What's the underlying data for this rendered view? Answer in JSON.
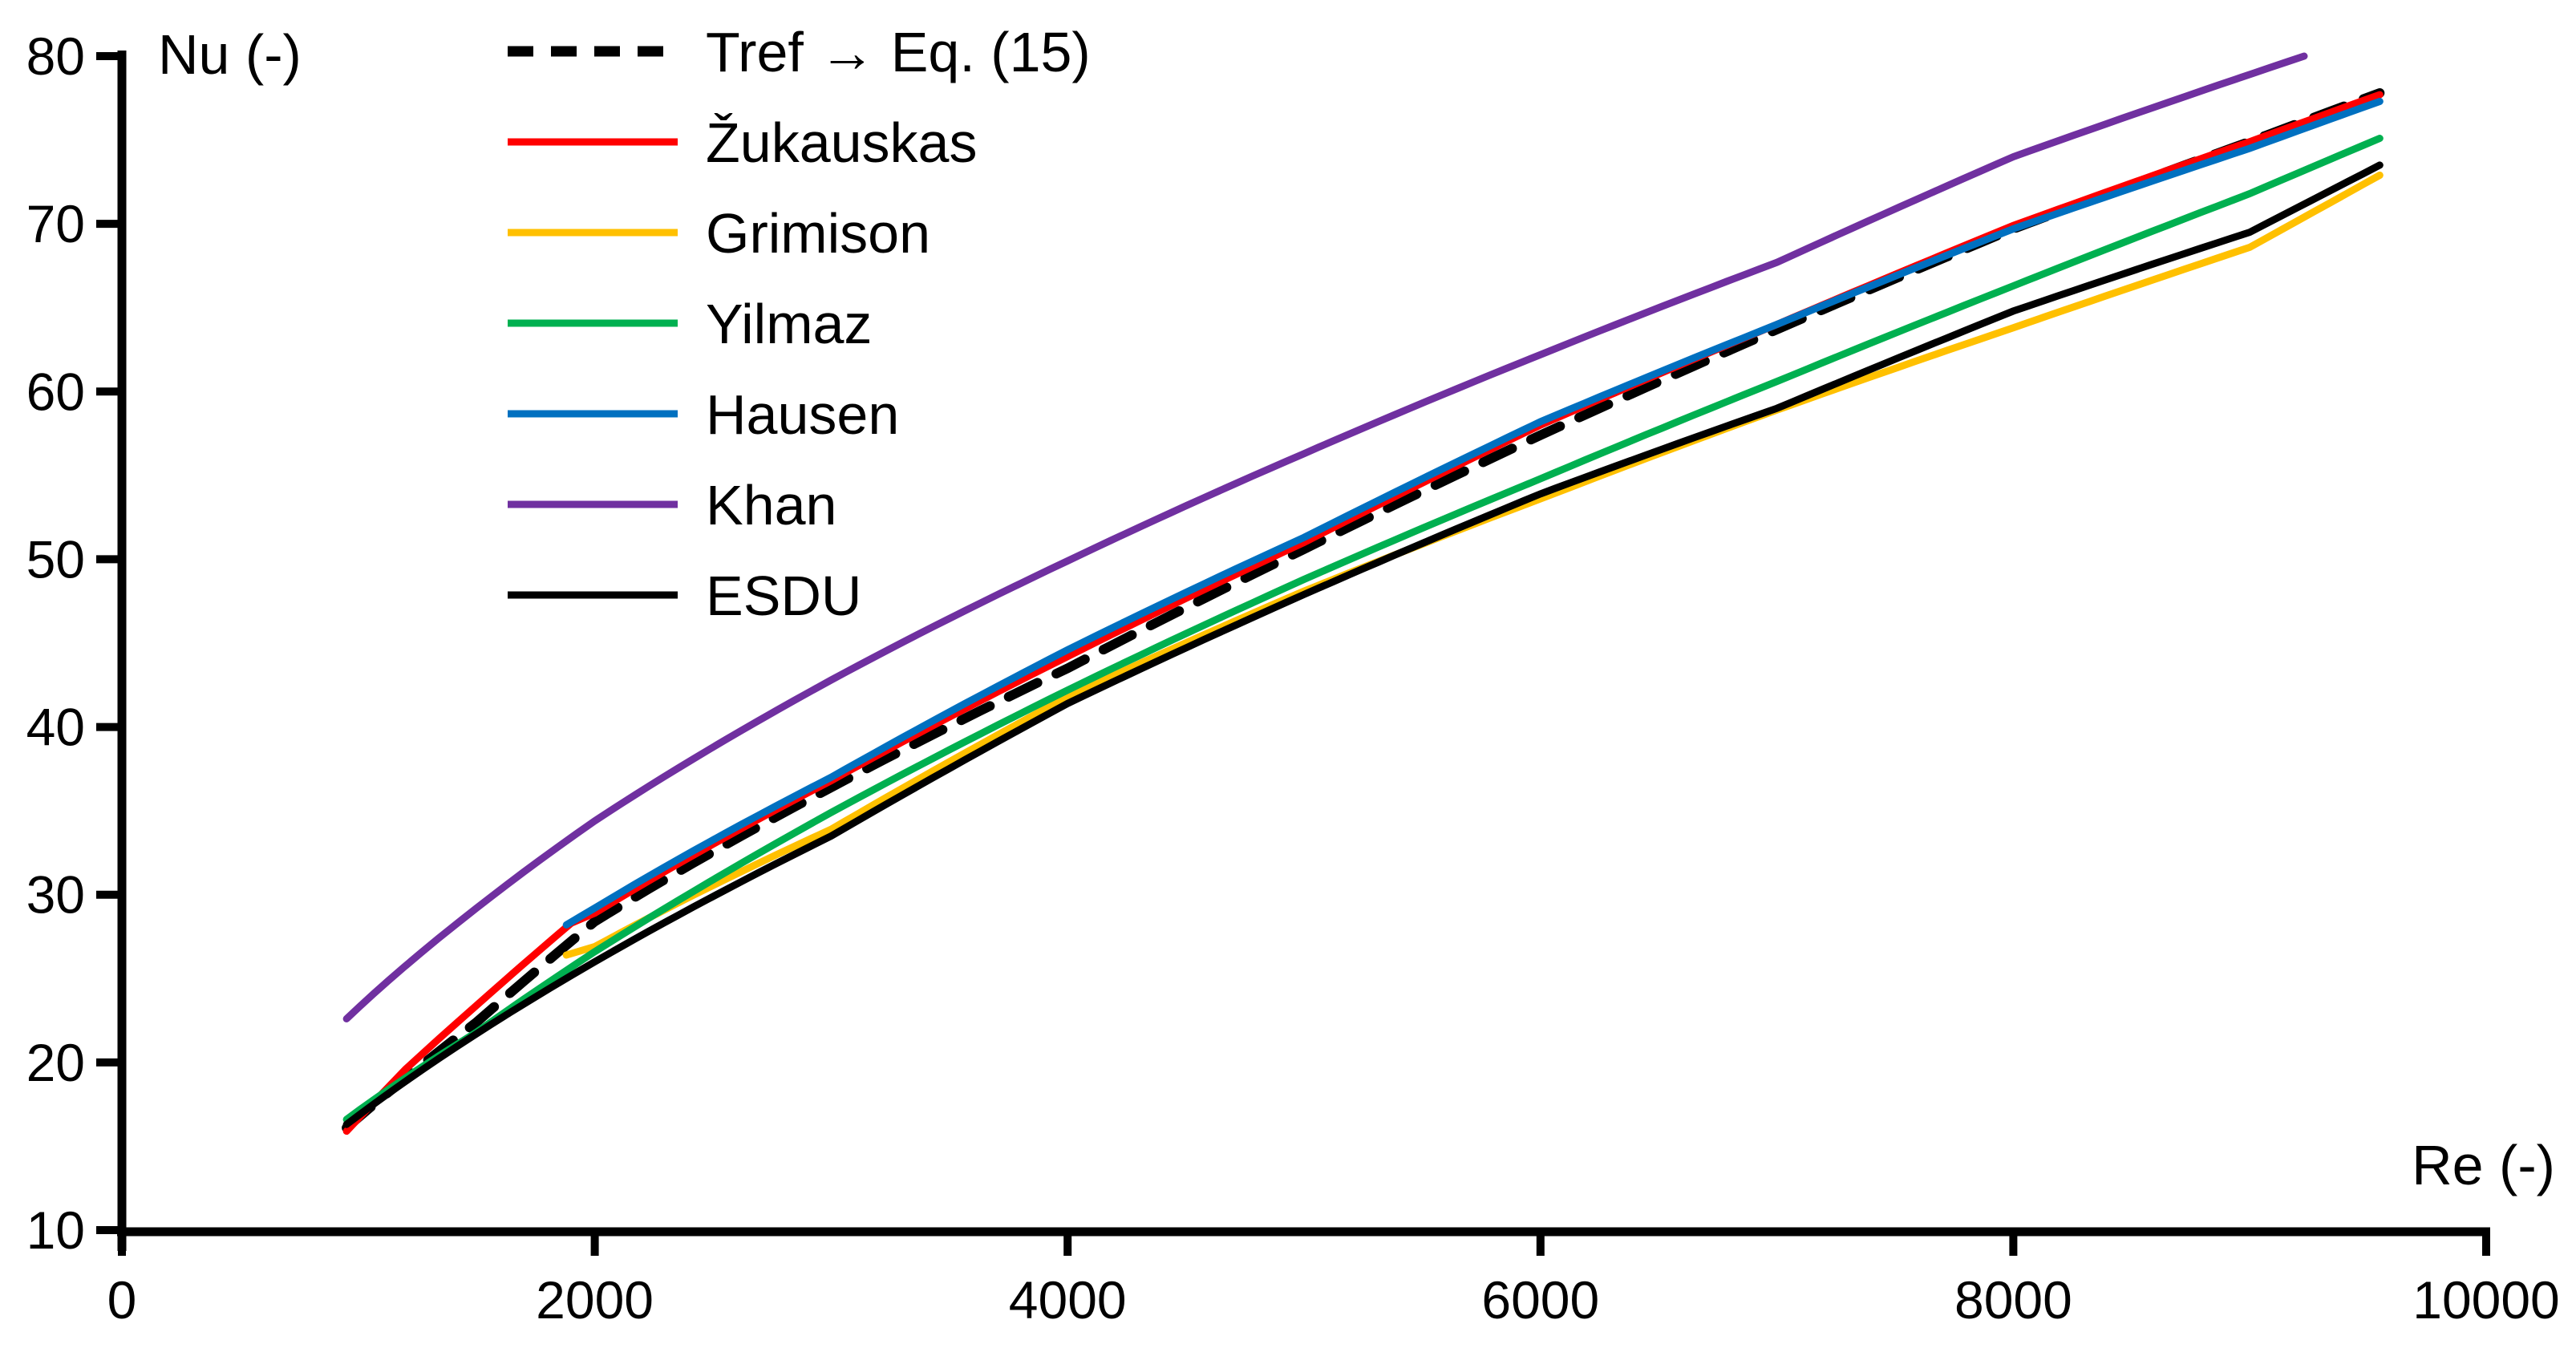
{
  "figure": {
    "background": "#FFFFFF",
    "plot_border": "none",
    "grid": false
  },
  "axes": {
    "x": {
      "label": "Re (-)",
      "min": 0,
      "max": 10000,
      "ticks": [
        0,
        2000,
        4000,
        6000,
        8000,
        10000
      ],
      "tick_labels": [
        "0",
        "2000",
        "4000",
        "6000",
        "8000",
        "10000"
      ]
    },
    "y": {
      "label": "Nu (-)",
      "min": 10,
      "max": 80,
      "ticks": [
        10,
        20,
        30,
        40,
        50,
        60,
        70,
        80
      ],
      "tick_labels": [
        "10",
        "20",
        "30",
        "40",
        "50",
        "60",
        "70",
        "80"
      ]
    }
  },
  "chart_data": {
    "type": "line",
    "title": "",
    "xlabel": "Re (-)",
    "ylabel": "Nu (-)",
    "xlim": [
      0,
      10000
    ],
    "ylim": [
      10,
      80
    ],
    "grid": false,
    "legend_position": "upper-left-inside",
    "series": [
      {
        "name": "Tref → Eq. (15)",
        "color": "#000000",
        "style": "dashed",
        "points": [
          [
            950,
            16.1
          ],
          [
            1500,
            22.4
          ],
          [
            2000,
            28.4
          ],
          [
            3000,
            36.4
          ],
          [
            4000,
            43.5
          ],
          [
            5000,
            50.6
          ],
          [
            6000,
            57.4
          ],
          [
            7000,
            63.7
          ],
          [
            8000,
            69.7
          ],
          [
            9000,
            74.9
          ],
          [
            9550,
            77.8
          ]
        ]
      },
      {
        "name": "Žukauskas",
        "color": "#FF0000",
        "style": "solid",
        "points": [
          [
            950,
            15.9
          ],
          [
            1200,
            19.6
          ],
          [
            1500,
            23.4
          ],
          [
            1900,
            28.3
          ],
          [
            2000,
            28.9
          ],
          [
            3000,
            36.8
          ],
          [
            4000,
            44.2
          ],
          [
            5000,
            51.0
          ],
          [
            6000,
            58.0
          ],
          [
            7000,
            64.0
          ],
          [
            8000,
            69.9
          ],
          [
            9000,
            74.9
          ],
          [
            9550,
            77.7
          ]
        ]
      },
      {
        "name": "Grimison",
        "color": "#FFC000",
        "style": "solid",
        "points": [
          [
            1880,
            26.4
          ],
          [
            2000,
            26.9
          ],
          [
            3000,
            33.9
          ],
          [
            4000,
            41.8
          ],
          [
            5000,
            48.1
          ],
          [
            6000,
            53.6
          ],
          [
            7000,
            58.9
          ],
          [
            8000,
            63.8
          ],
          [
            9000,
            68.6
          ],
          [
            9550,
            72.9
          ]
        ]
      },
      {
        "name": "Yilmaz",
        "color": "#00B050",
        "style": "solid",
        "points": [
          [
            950,
            16.6
          ],
          [
            1500,
            21.8
          ],
          [
            2000,
            26.6
          ],
          [
            3000,
            34.9
          ],
          [
            4000,
            42.2
          ],
          [
            5000,
            48.8
          ],
          [
            6000,
            54.8
          ],
          [
            7000,
            60.6
          ],
          [
            8000,
            66.3
          ],
          [
            9000,
            71.8
          ],
          [
            9550,
            75.1
          ]
        ]
      },
      {
        "name": "Hausen",
        "color": "#0070C0",
        "style": "solid",
        "points": [
          [
            1880,
            28.2
          ],
          [
            2000,
            29.2
          ],
          [
            3000,
            37.0
          ],
          [
            4000,
            44.6
          ],
          [
            5000,
            51.3
          ],
          [
            6000,
            58.2
          ],
          [
            7000,
            64.0
          ],
          [
            8000,
            69.7
          ],
          [
            9000,
            74.5
          ],
          [
            9550,
            77.3
          ]
        ]
      },
      {
        "name": "Khan",
        "color": "#7030A0",
        "style": "solid",
        "points": [
          [
            950,
            22.6
          ],
          [
            1500,
            29.2
          ],
          [
            2000,
            34.4
          ],
          [
            3000,
            42.8
          ],
          [
            4000,
            49.9
          ],
          [
            5000,
            56.3
          ],
          [
            6000,
            62.2
          ],
          [
            7000,
            67.7
          ],
          [
            8000,
            74.0
          ],
          [
            9230,
            80.0
          ]
        ]
      },
      {
        "name": "ESDU",
        "color": "#000000",
        "style": "solid",
        "points": [
          [
            950,
            16.3
          ],
          [
            2000,
            26.0
          ],
          [
            3000,
            33.5
          ],
          [
            4000,
            41.4
          ],
          [
            5000,
            47.9
          ],
          [
            6000,
            53.9
          ],
          [
            7000,
            59.0
          ],
          [
            8000,
            64.8
          ],
          [
            9000,
            69.5
          ],
          [
            9550,
            73.5
          ]
        ]
      }
    ]
  },
  "legend": {
    "items": [
      {
        "label": "Tref → Eq. (15)",
        "swatch": "dashed-black-line"
      },
      {
        "label": "Žukauskas",
        "swatch": "red-line"
      },
      {
        "label": "Grimison",
        "swatch": "yellow-line"
      },
      {
        "label": "Yilmaz",
        "swatch": "green-line"
      },
      {
        "label": "Hausen",
        "swatch": "blue-line"
      },
      {
        "label": "Khan",
        "swatch": "purple-line"
      },
      {
        "label": "ESDU",
        "swatch": "black-line"
      }
    ]
  }
}
